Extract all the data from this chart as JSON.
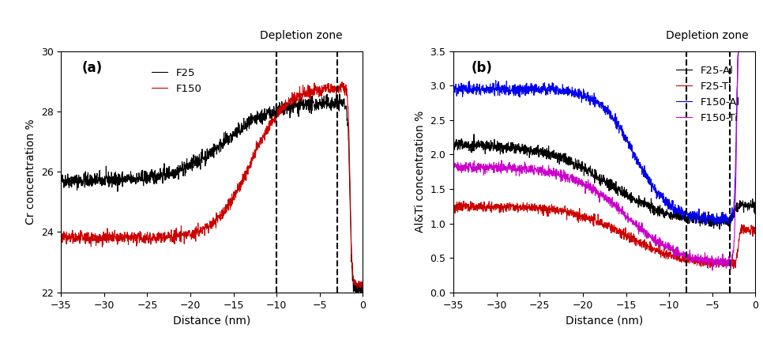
{
  "title_a": "(a)",
  "title_b": "(b)",
  "xlabel": "Distance (nm)",
  "ylabel_a": "Cr concentration %",
  "ylabel_b": "Al&Ti concentration %",
  "annotation_a": "Depletion zone",
  "annotation_b": "Depletion zone",
  "xlim": [
    -35,
    0
  ],
  "ylim_a": [
    22,
    30
  ],
  "ylim_b": [
    0.0,
    3.5
  ],
  "yticks_a": [
    22,
    24,
    26,
    28,
    30
  ],
  "yticks_b": [
    0.0,
    0.5,
    1.0,
    1.5,
    2.0,
    2.5,
    3.0,
    3.5
  ],
  "xticks": [
    -35,
    -30,
    -25,
    -20,
    -15,
    -10,
    -5,
    0
  ],
  "vlines_a": [
    -10,
    -3
  ],
  "vlines_b": [
    -8,
    -3
  ],
  "colors": {
    "F25_Cr": "#000000",
    "F150_Cr": "#cc0000",
    "F25_Al": "#000000",
    "F25_Ti": "#cc0000",
    "F150_Al": "#0000ee",
    "F150_Ti": "#cc00cc"
  },
  "legend_a": [
    "F25",
    "F150"
  ],
  "legend_b": [
    "F25-Al",
    "F25-Ti",
    "F150-Al",
    "F150-Ti"
  ],
  "seed": 42
}
